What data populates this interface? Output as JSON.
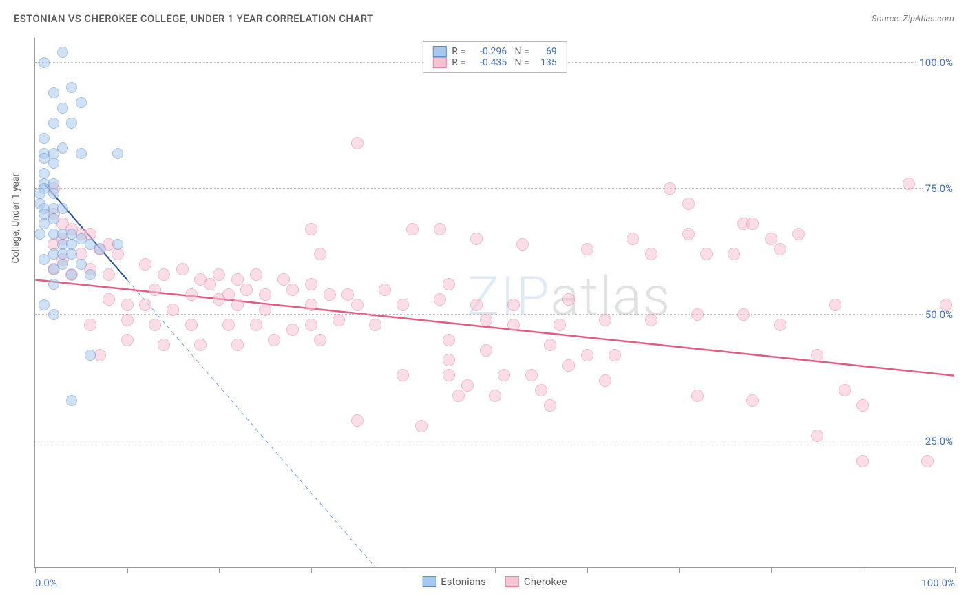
{
  "title": "ESTONIAN VS CHEROKEE COLLEGE, UNDER 1 YEAR CORRELATION CHART",
  "source": "Source: ZipAtlas.com",
  "ylabel": "College, Under 1 year",
  "watermark": "ZIPatlas",
  "chart": {
    "type": "scatter",
    "xlim": [
      0,
      100
    ],
    "ylim": [
      0,
      105
    ],
    "x_ticks": [
      0,
      10,
      20,
      30,
      40,
      50,
      60,
      70,
      80,
      90,
      100
    ],
    "x_tick_labels": {
      "0": "0.0%",
      "100": "100.0%"
    },
    "y_ticks": [
      25,
      50,
      75,
      100
    ],
    "y_tick_labels": [
      "25.0%",
      "50.0%",
      "75.0%",
      "100.0%"
    ],
    "background_color": "#ffffff",
    "grid_color": "#bbbbbb",
    "series": [
      {
        "name": "Estonians",
        "color": "#6fa3e0",
        "fill": "#a8c9ee",
        "border": "#5b8fd0",
        "marker_radius": 8,
        "R": "-0.296",
        "N": "69",
        "trend": {
          "x1": 1,
          "y1": 76,
          "x2": 10,
          "y2": 57,
          "color": "#1f4ea0",
          "width": 2
        },
        "trend_dashed": {
          "x1": 10,
          "y1": 57,
          "x2": 37,
          "y2": 0,
          "color": "#6fa3e0",
          "width": 1
        },
        "points": [
          [
            3,
            102
          ],
          [
            1,
            100
          ],
          [
            2,
            94
          ],
          [
            4,
            95
          ],
          [
            5,
            92
          ],
          [
            3,
            91
          ],
          [
            2,
            88
          ],
          [
            4,
            88
          ],
          [
            1,
            85
          ],
          [
            1,
            82
          ],
          [
            2,
            82
          ],
          [
            3,
            83
          ],
          [
            5,
            82
          ],
          [
            9,
            82
          ],
          [
            1,
            81
          ],
          [
            2,
            80
          ],
          [
            1,
            78
          ],
          [
            1,
            76
          ],
          [
            2,
            76
          ],
          [
            1,
            75
          ],
          [
            0.5,
            74
          ],
          [
            2,
            74
          ],
          [
            0.5,
            72
          ],
          [
            1,
            71
          ],
          [
            2,
            71
          ],
          [
            3,
            71
          ],
          [
            1,
            70
          ],
          [
            2,
            69
          ],
          [
            1,
            68
          ],
          [
            0.5,
            66
          ],
          [
            2,
            66
          ],
          [
            3,
            66
          ],
          [
            4,
            66
          ],
          [
            5,
            65
          ],
          [
            3,
            64
          ],
          [
            4,
            64
          ],
          [
            6,
            64
          ],
          [
            9,
            64
          ],
          [
            2,
            62
          ],
          [
            3,
            62
          ],
          [
            4,
            62
          ],
          [
            7,
            63
          ],
          [
            1,
            61
          ],
          [
            3,
            60
          ],
          [
            5,
            60
          ],
          [
            2,
            59
          ],
          [
            4,
            58
          ],
          [
            6,
            58
          ],
          [
            2,
            56
          ],
          [
            1,
            52
          ],
          [
            2,
            50
          ],
          [
            6,
            42
          ],
          [
            4,
            33
          ]
        ]
      },
      {
        "name": "Cherokee",
        "color": "#e88ca8",
        "fill": "#f6c3d2",
        "border": "#e08aa5",
        "marker_radius": 9,
        "R": "-0.435",
        "N": "135",
        "trend": {
          "x1": 0,
          "y1": 57,
          "x2": 100,
          "y2": 38,
          "color": "#e45b82",
          "width": 2.5
        },
        "points": [
          [
            35,
            84
          ],
          [
            2,
            75
          ],
          [
            69,
            75
          ],
          [
            95,
            76
          ],
          [
            71,
            72
          ],
          [
            2,
            70
          ],
          [
            3,
            68
          ],
          [
            44,
            67
          ],
          [
            77,
            68
          ],
          [
            78,
            68
          ],
          [
            5,
            66
          ],
          [
            4,
            67
          ],
          [
            6,
            66
          ],
          [
            30,
            67
          ],
          [
            41,
            67
          ],
          [
            71,
            66
          ],
          [
            2,
            64
          ],
          [
            8,
            64
          ],
          [
            3,
            65
          ],
          [
            7,
            63
          ],
          [
            48,
            65
          ],
          [
            53,
            64
          ],
          [
            65,
            65
          ],
          [
            80,
            65
          ],
          [
            83,
            66
          ],
          [
            5,
            62
          ],
          [
            3,
            61
          ],
          [
            9,
            62
          ],
          [
            31,
            62
          ],
          [
            60,
            63
          ],
          [
            67,
            62
          ],
          [
            73,
            62
          ],
          [
            76,
            62
          ],
          [
            81,
            63
          ],
          [
            2,
            59
          ],
          [
            4,
            58
          ],
          [
            6,
            59
          ],
          [
            8,
            58
          ],
          [
            12,
            60
          ],
          [
            14,
            58
          ],
          [
            16,
            59
          ],
          [
            18,
            57
          ],
          [
            20,
            58
          ],
          [
            22,
            57
          ],
          [
            24,
            58
          ],
          [
            27,
            57
          ],
          [
            30,
            56
          ],
          [
            13,
            55
          ],
          [
            17,
            54
          ],
          [
            19,
            56
          ],
          [
            21,
            54
          ],
          [
            23,
            55
          ],
          [
            25,
            54
          ],
          [
            28,
            55
          ],
          [
            32,
            54
          ],
          [
            34,
            54
          ],
          [
            38,
            55
          ],
          [
            45,
            56
          ],
          [
            8,
            53
          ],
          [
            10,
            52
          ],
          [
            12,
            52
          ],
          [
            15,
            51
          ],
          [
            20,
            53
          ],
          [
            22,
            52
          ],
          [
            25,
            51
          ],
          [
            30,
            52
          ],
          [
            35,
            52
          ],
          [
            40,
            52
          ],
          [
            44,
            53
          ],
          [
            48,
            52
          ],
          [
            52,
            52
          ],
          [
            58,
            53
          ],
          [
            87,
            52
          ],
          [
            99,
            52
          ],
          [
            6,
            48
          ],
          [
            10,
            49
          ],
          [
            13,
            48
          ],
          [
            17,
            48
          ],
          [
            21,
            48
          ],
          [
            24,
            48
          ],
          [
            28,
            47
          ],
          [
            30,
            48
          ],
          [
            33,
            49
          ],
          [
            37,
            48
          ],
          [
            49,
            49
          ],
          [
            52,
            48
          ],
          [
            57,
            48
          ],
          [
            62,
            49
          ],
          [
            67,
            49
          ],
          [
            72,
            50
          ],
          [
            77,
            50
          ],
          [
            81,
            48
          ],
          [
            10,
            45
          ],
          [
            14,
            44
          ],
          [
            18,
            44
          ],
          [
            22,
            44
          ],
          [
            26,
            45
          ],
          [
            31,
            45
          ],
          [
            45,
            45
          ],
          [
            45,
            41
          ],
          [
            49,
            43
          ],
          [
            56,
            44
          ],
          [
            58,
            40
          ],
          [
            60,
            42
          ],
          [
            63,
            42
          ],
          [
            85,
            42
          ],
          [
            7,
            42
          ],
          [
            45,
            38
          ],
          [
            47,
            36
          ],
          [
            51,
            38
          ],
          [
            54,
            38
          ],
          [
            55,
            35
          ],
          [
            62,
            37
          ],
          [
            46,
            34
          ],
          [
            50,
            34
          ],
          [
            72,
            34
          ],
          [
            88,
            35
          ],
          [
            78,
            33
          ],
          [
            35,
            29
          ],
          [
            42,
            28
          ],
          [
            40,
            38
          ],
          [
            85,
            26
          ],
          [
            90,
            32
          ],
          [
            90,
            21
          ],
          [
            97,
            21
          ],
          [
            56,
            32
          ]
        ]
      }
    ]
  },
  "legend_bottom": [
    {
      "label": "Estonians",
      "fill": "#a8c9ee",
      "border": "#5b8fd0"
    },
    {
      "label": "Cherokee",
      "fill": "#f6c3d2",
      "border": "#e08aa5"
    }
  ]
}
